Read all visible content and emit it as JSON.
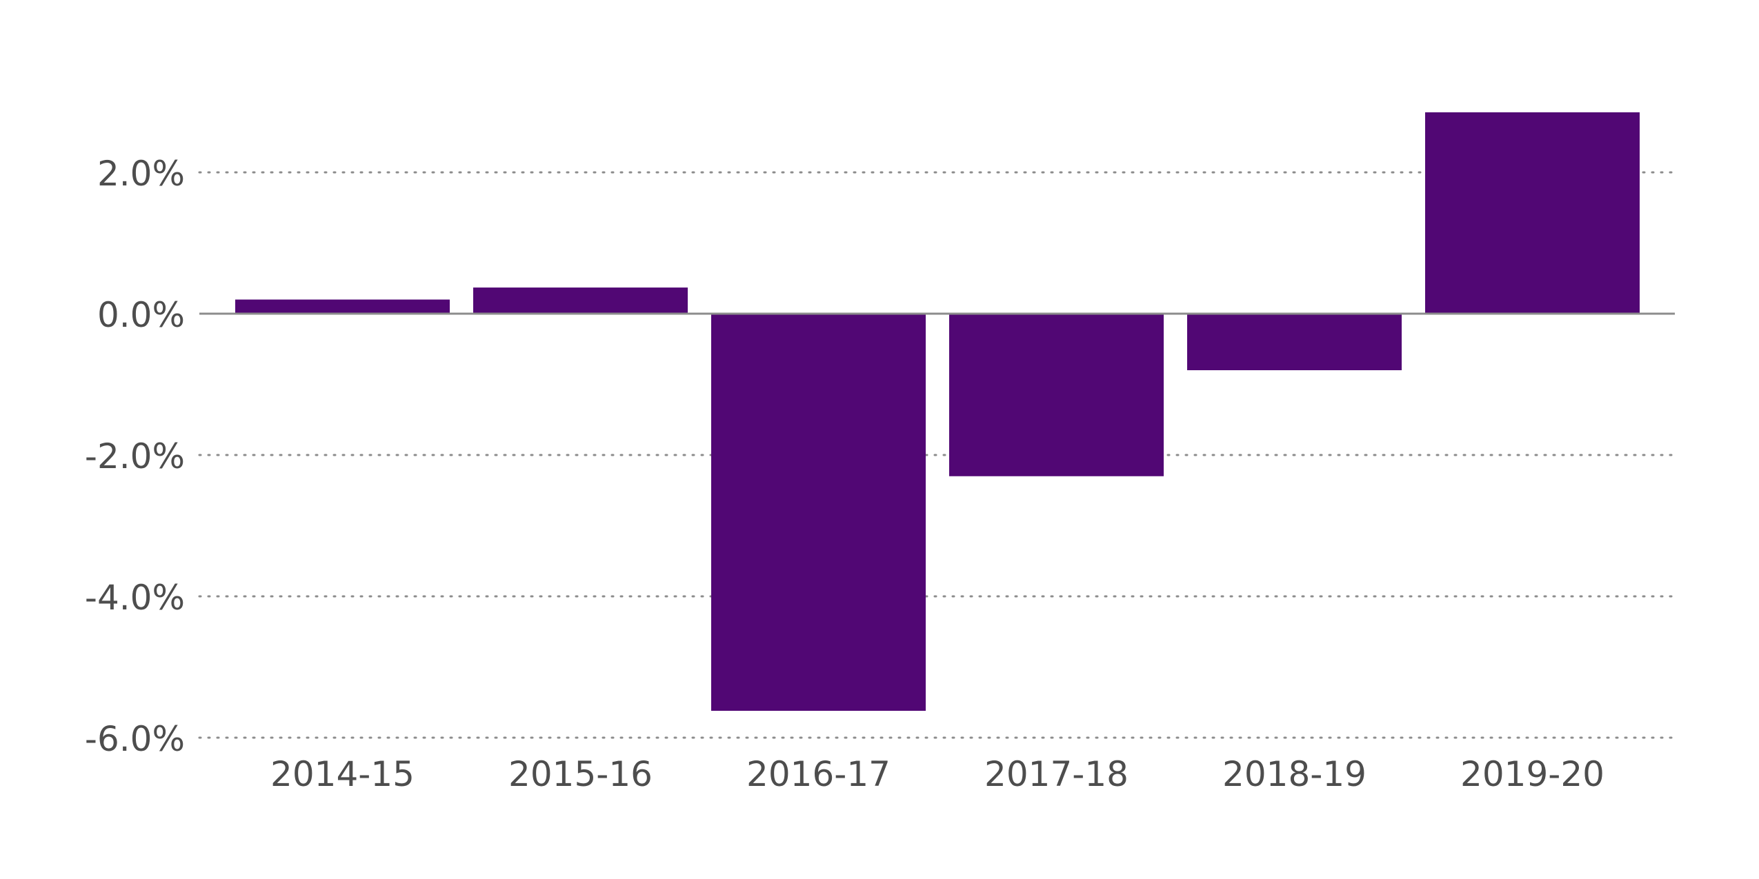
{
  "chart_data": {
    "type": "bar",
    "title": "",
    "xlabel": "",
    "ylabel": "",
    "categories": [
      "2014-15",
      "2015-16",
      "2016-17",
      "2017-18",
      "2018-19",
      "2019-20"
    ],
    "values": [
      0.2,
      0.37,
      -5.62,
      -2.3,
      -0.8,
      2.85
    ],
    "value_unit": "%",
    "ylim": [
      -6,
      2
    ],
    "yticks": [
      2,
      0,
      -2,
      -4,
      -6
    ],
    "ytick_labels": [
      "2.0%",
      "0.0%",
      "-2.0%",
      "-4.0%",
      "-6.0%"
    ],
    "grid": "horizontal dotted",
    "legend": "none",
    "colors": {
      "bar": "#510774",
      "axis": "#8c8c8c",
      "grid": "#8c8c8c",
      "text": "#4d4d4d"
    }
  }
}
